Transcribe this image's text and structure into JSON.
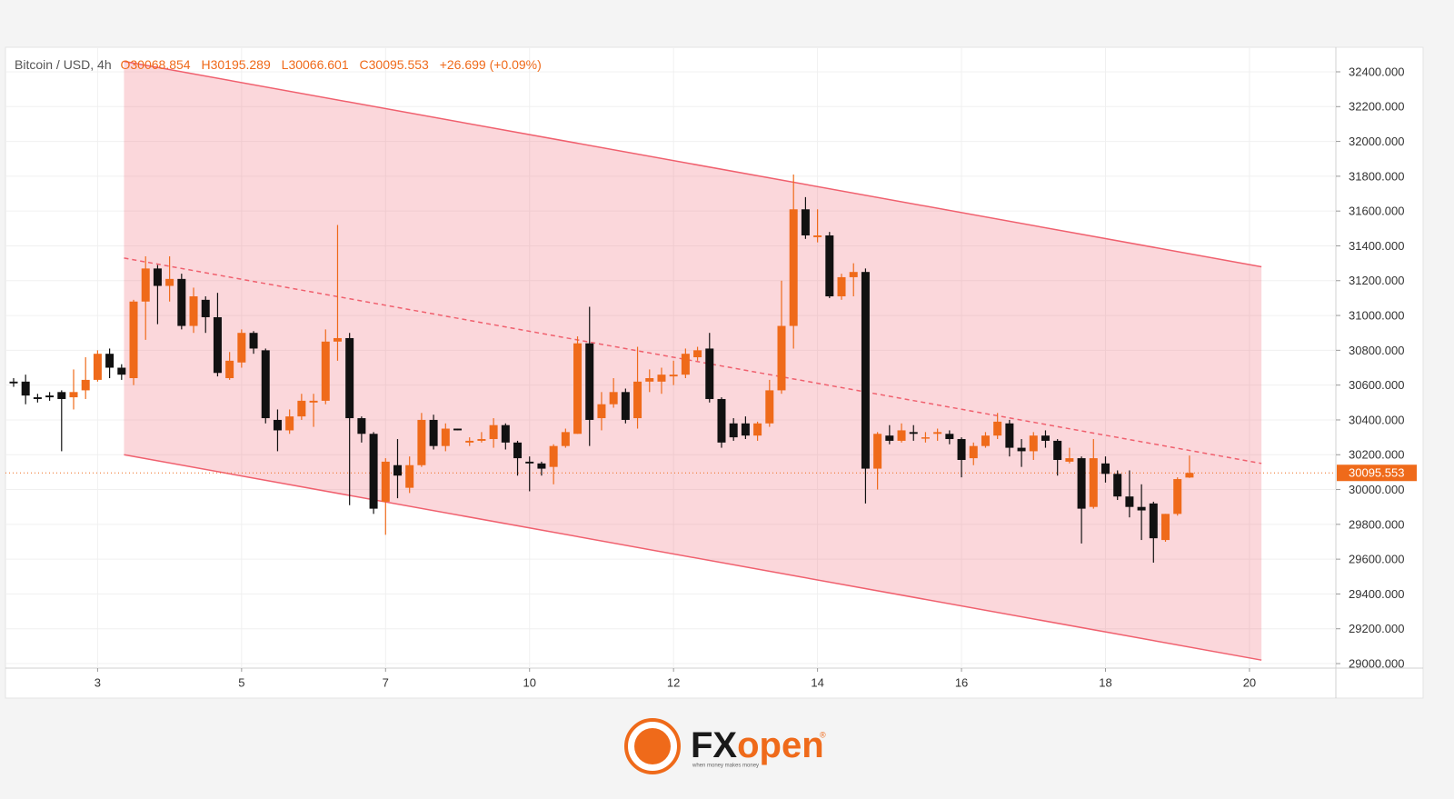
{
  "chart_data": {
    "type": "candlestick",
    "header": {
      "symbol": "Bitcoin / USD, 4h",
      "open": "O30068.854",
      "high": "H30195.289",
      "low": "L30066.601",
      "close": "C30095.553",
      "change": "+26.699 (+0.09%)"
    },
    "up_color": "#ef6a1a",
    "down_color": "#111111",
    "open": [
      30620,
      30620,
      30530,
      30540,
      30560,
      30530,
      30570,
      30630,
      30780,
      30700,
      30640,
      31080,
      31270,
      31170,
      31210,
      30940,
      31090,
      30990,
      30640,
      30730,
      30900,
      30800,
      30400,
      30340,
      30420,
      30500,
      30510,
      30850,
      30870,
      30410,
      30320,
      29930,
      30140,
      30010,
      30140,
      30400,
      30250,
      30350,
      30270,
      30280,
      30290,
      30370,
      30270,
      30160,
      30150,
      30130,
      30250,
      30320,
      30840,
      30410,
      30490,
      30560,
      30410,
      30620,
      30620,
      30650,
      30660,
      30760,
      30810,
      30520,
      30380,
      30380,
      30310,
      30380,
      30570,
      30940,
      31610,
      31450,
      31460,
      31110,
      31220,
      31250,
      30120,
      30310,
      30280,
      30330,
      30300,
      30320,
      30320,
      30290,
      30180,
      30250,
      30310,
      30380,
      30240,
      30220,
      30310,
      30280,
      30160,
      30180,
      29900,
      30150,
      30090,
      29960,
      29900,
      29920,
      29710,
      29860,
      30068.854
    ],
    "high": [
      30640,
      30660,
      30550,
      30560,
      30570,
      30690,
      30760,
      30800,
      30810,
      30720,
      31090,
      31340,
      31290,
      31340,
      31240,
      31160,
      31110,
      31130,
      30790,
      30920,
      30910,
      30810,
      30460,
      30460,
      30550,
      30550,
      30920,
      31520,
      30900,
      30420,
      30330,
      30180,
      30290,
      30190,
      30440,
      30430,
      30380,
      30350,
      30300,
      30330,
      30410,
      30380,
      30280,
      30190,
      30160,
      30260,
      30350,
      30880,
      31050,
      30560,
      30640,
      30580,
      30820,
      30690,
      30700,
      30740,
      30810,
      30820,
      30900,
      30530,
      30410,
      30420,
      30390,
      30630,
      31200,
      31810,
      31680,
      31610,
      31480,
      31240,
      31300,
      31270,
      30330,
      30370,
      30380,
      30370,
      30330,
      30350,
      30340,
      30300,
      30270,
      30330,
      30440,
      30400,
      30290,
      30330,
      30340,
      30290,
      30240,
      30190,
      30290,
      30190,
      30110,
      30110,
      30030,
      29930,
      29860,
      30070,
      30195.289
    ],
    "low": [
      30590,
      30490,
      30500,
      30510,
      30220,
      30460,
      30520,
      30620,
      30640,
      30630,
      30600,
      30860,
      30950,
      31080,
      30920,
      30900,
      30900,
      30650,
      30630,
      30700,
      30780,
      30380,
      30220,
      30320,
      30400,
      30360,
      30490,
      30740,
      29910,
      30270,
      29860,
      29740,
      29950,
      29980,
      30130,
      30230,
      30220,
      30340,
      30250,
      30270,
      30240,
      30230,
      30080,
      29990,
      30080,
      30030,
      30240,
      30320,
      30250,
      30340,
      30470,
      30380,
      30350,
      30560,
      30550,
      30600,
      30640,
      30740,
      30500,
      30240,
      30280,
      30290,
      30280,
      30360,
      30550,
      30810,
      31440,
      31420,
      31100,
      31090,
      31110,
      29920,
      30000,
      30260,
      30270,
      30280,
      30270,
      30280,
      30260,
      30070,
      30140,
      30240,
      30290,
      30190,
      30130,
      30170,
      30240,
      30080,
      30150,
      29690,
      29890,
      30040,
      29940,
      29840,
      29710,
      29580,
      29700,
      29850,
      30066.601
    ],
    "close": [
      30610,
      30540,
      30520,
      30530,
      30520,
      30560,
      30630,
      30780,
      30700,
      30660,
      31080,
      31270,
      31170,
      31210,
      30940,
      31110,
      30990,
      30670,
      30740,
      30900,
      30810,
      30410,
      30340,
      30420,
      30510,
      30510,
      30850,
      30870,
      30410,
      30320,
      29890,
      30160,
      30080,
      30140,
      30400,
      30250,
      30350,
      30340,
      30280,
      30290,
      30370,
      30270,
      30180,
      30150,
      30120,
      30250,
      30330,
      30840,
      30400,
      30490,
      30560,
      30400,
      30620,
      30640,
      30660,
      30660,
      30780,
      30800,
      30520,
      30270,
      30300,
      30310,
      30380,
      30570,
      30940,
      31610,
      31460,
      31460,
      31110,
      31220,
      31250,
      30120,
      30320,
      30280,
      30340,
      30320,
      30300,
      30330,
      30290,
      30170,
      30250,
      30310,
      30390,
      30240,
      30220,
      30310,
      30280,
      30170,
      30180,
      29890,
      30180,
      30090,
      29960,
      29900,
      29880,
      29720,
      29860,
      30060,
      30095.553
    ],
    "channel": {
      "x": [
        9.2,
        104
      ],
      "upper": [
        32460,
        31280
      ],
      "middle": [
        31330,
        30150
      ],
      "lower": [
        30200,
        29020
      ],
      "color": "#f0606e"
    },
    "last_price": {
      "value": 30095.553,
      "label": "30095.553"
    },
    "xlim": [
      -0.68,
      110.2
    ],
    "ylim": [
      28974,
      32541
    ],
    "xticks": [
      {
        "value": 7,
        "label": "3"
      },
      {
        "value": 19,
        "label": "5"
      },
      {
        "value": 31,
        "label": "7"
      },
      {
        "value": 43,
        "label": "10"
      },
      {
        "value": 55,
        "label": "12"
      },
      {
        "value": 67,
        "label": "14"
      },
      {
        "value": 79,
        "label": "16"
      },
      {
        "value": 91,
        "label": "18"
      },
      {
        "value": 103,
        "label": "20"
      }
    ],
    "yticks": [
      {
        "value": 29000,
        "label": "29000.000"
      },
      {
        "value": 29200,
        "label": "29200.000"
      },
      {
        "value": 29400,
        "label": "29400.000"
      },
      {
        "value": 29600,
        "label": "29600.000"
      },
      {
        "value": 29800,
        "label": "29800.000"
      },
      {
        "value": 30000,
        "label": "30000.000"
      },
      {
        "value": 30200,
        "label": "30200.000"
      },
      {
        "value": 30400,
        "label": "30400.000"
      },
      {
        "value": 30600,
        "label": "30600.000"
      },
      {
        "value": 30800,
        "label": "30800.000"
      },
      {
        "value": 31000,
        "label": "31000.000"
      },
      {
        "value": 31200,
        "label": "31200.000"
      },
      {
        "value": 31400,
        "label": "31400.000"
      },
      {
        "value": 31600,
        "label": "31600.000"
      },
      {
        "value": 31800,
        "label": "31800.000"
      },
      {
        "value": 32000,
        "label": "32000.000"
      },
      {
        "value": 32200,
        "label": "32200.000"
      },
      {
        "value": 32400,
        "label": "32400.000"
      }
    ],
    "grid": true
  },
  "logo": {
    "brand_a": "FX",
    "brand_b": "open",
    "registered": "®",
    "tagline": "when money makes money"
  }
}
